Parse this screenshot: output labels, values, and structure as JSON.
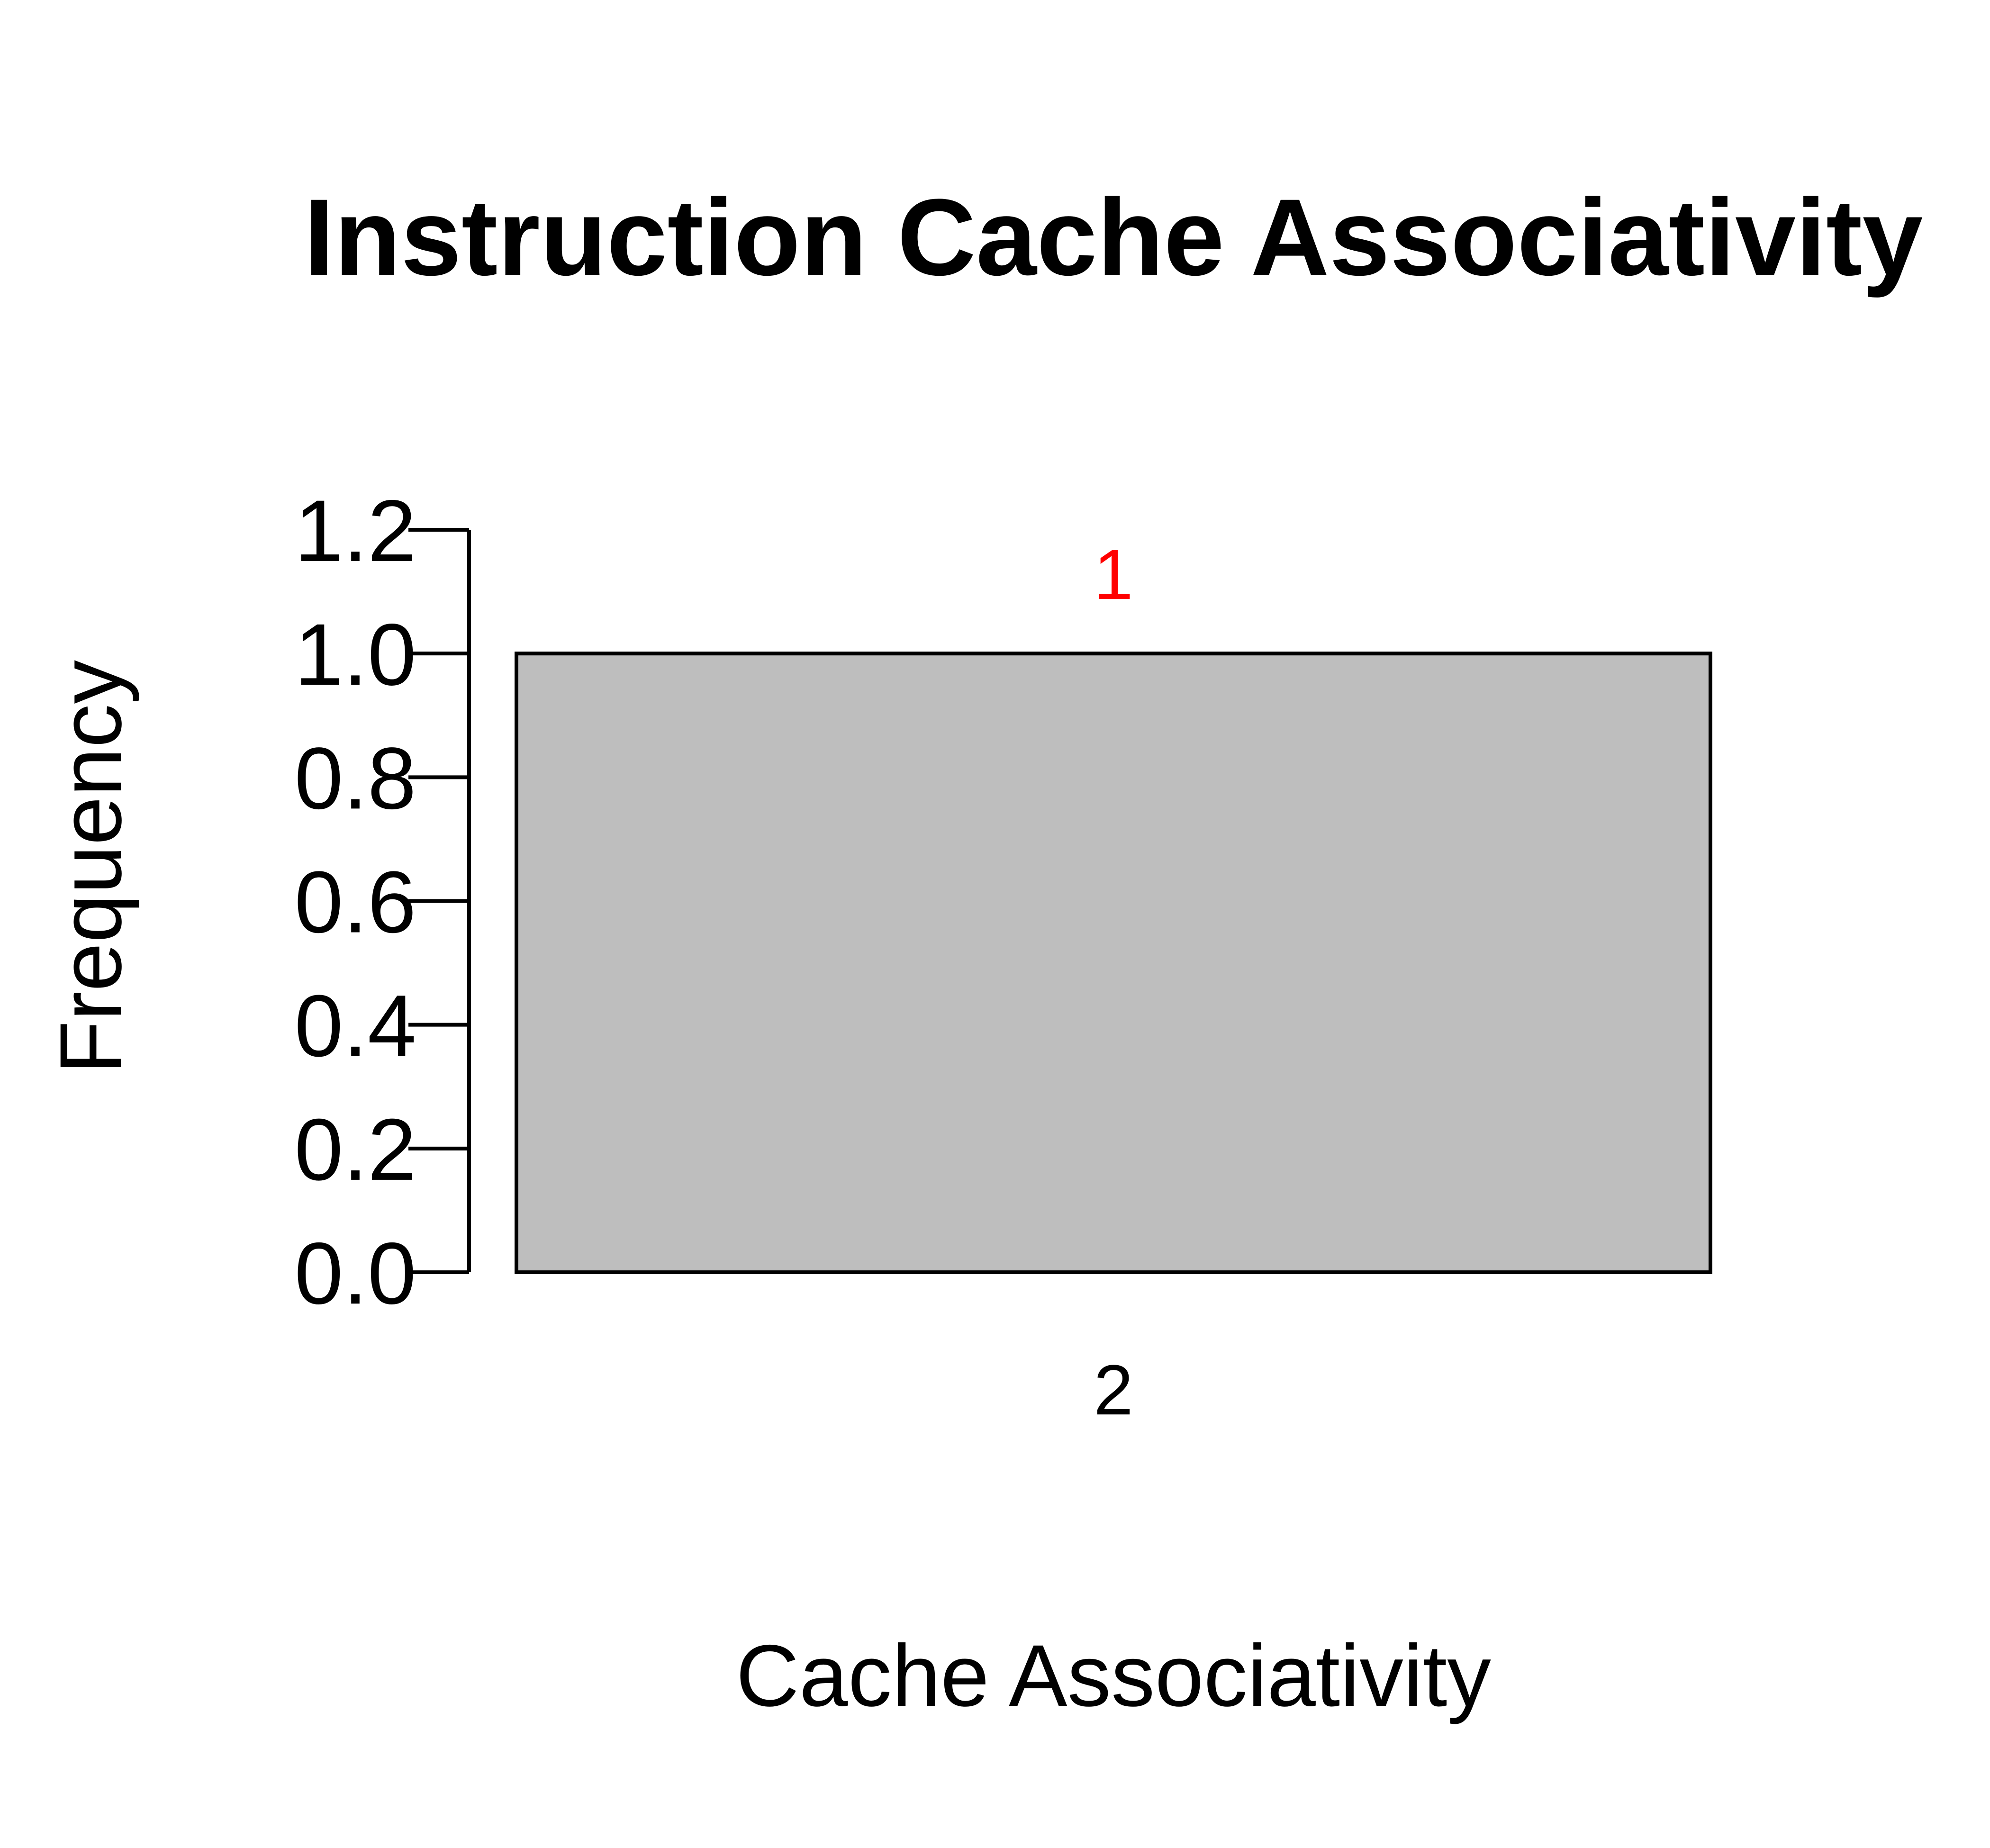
{
  "chart_data": {
    "type": "bar",
    "title": "Instruction Cache Associativity",
    "xlabel": "Cache Associativity",
    "ylabel": "Frequency",
    "categories": [
      "2"
    ],
    "values": [
      1
    ],
    "data_labels": [
      "1"
    ],
    "ylim": [
      0,
      1.2
    ],
    "yticks": [
      0,
      0.2,
      0.4,
      0.6,
      0.8,
      1.0,
      1.2
    ],
    "ytick_labels": [
      "0.0",
      "0.2",
      "0.4",
      "0.6",
      "0.8",
      "1.0",
      "1.2"
    ],
    "grid": false,
    "legend": "none",
    "bar_color": "#bebebe",
    "data_label_color": "#ff0000"
  }
}
